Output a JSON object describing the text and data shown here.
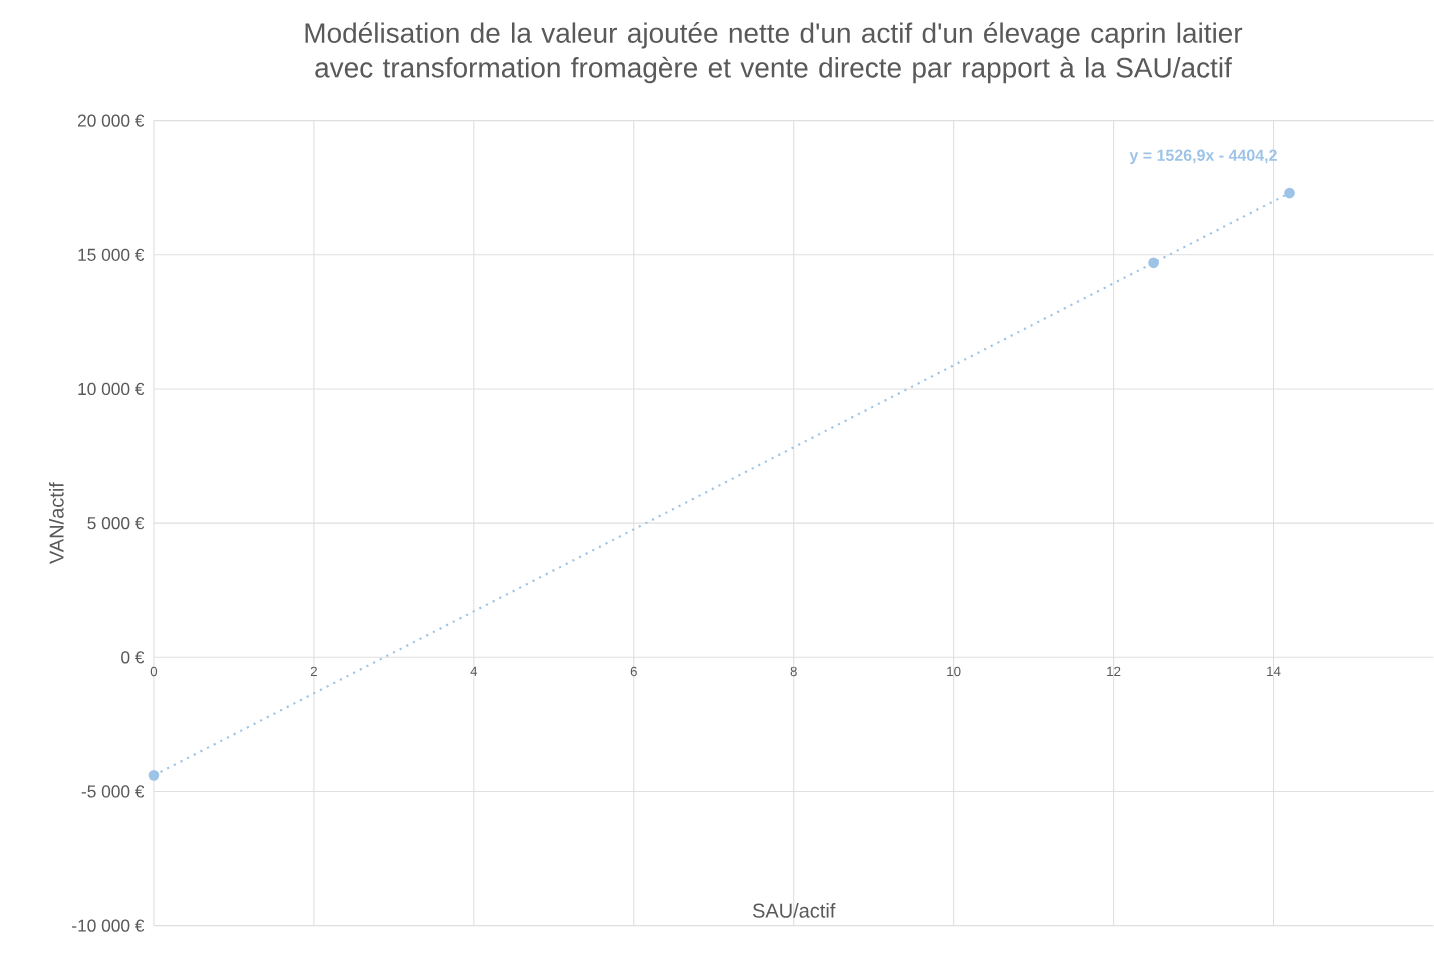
{
  "chart_data": {
    "type": "scatter",
    "title": "Modélisation de la valeur ajoutée nette d'un actif d'un élevage caprin laitier avec transformation fromagère et vente directe par rapport à la SAU/actif",
    "xlabel": "SAU/actif",
    "ylabel": "VAN/actif",
    "series": [
      {
        "color": "#9dc3e6",
        "x": [
          0,
          12.5,
          14.2
        ],
        "values": [
          -4400,
          14700,
          17300
        ],
        "marker": "circle"
      },
      {
        "type": "line",
        "color": "#9dc3e6",
        "x": [
          0,
          14.2
        ],
        "values": [
          -4400,
          17300
        ],
        "line_style": "dotted",
        "marker": "none"
      }
    ],
    "annotations": [
      "y = 1526,9x - 4404,2"
    ],
    "xlim": [
      0,
      16
    ],
    "xticks": [
      0,
      2,
      4,
      6,
      8,
      10,
      12,
      14
    ],
    "ylim": [
      -10000,
      20000
    ],
    "yticks": [
      {
        "value": -10000,
        "label": "-10 000 €"
      },
      {
        "value": -5000,
        "label": "-5 000 €"
      },
      {
        "value": 0,
        "label": "0 €"
      },
      {
        "value": 5000,
        "label": "5 000 €"
      },
      {
        "value": 10000,
        "label": "10 000 €"
      },
      {
        "value": 15000,
        "label": "15 000 €"
      },
      {
        "value": 20000,
        "label": "20 000 €"
      }
    ],
    "grid": true
  }
}
